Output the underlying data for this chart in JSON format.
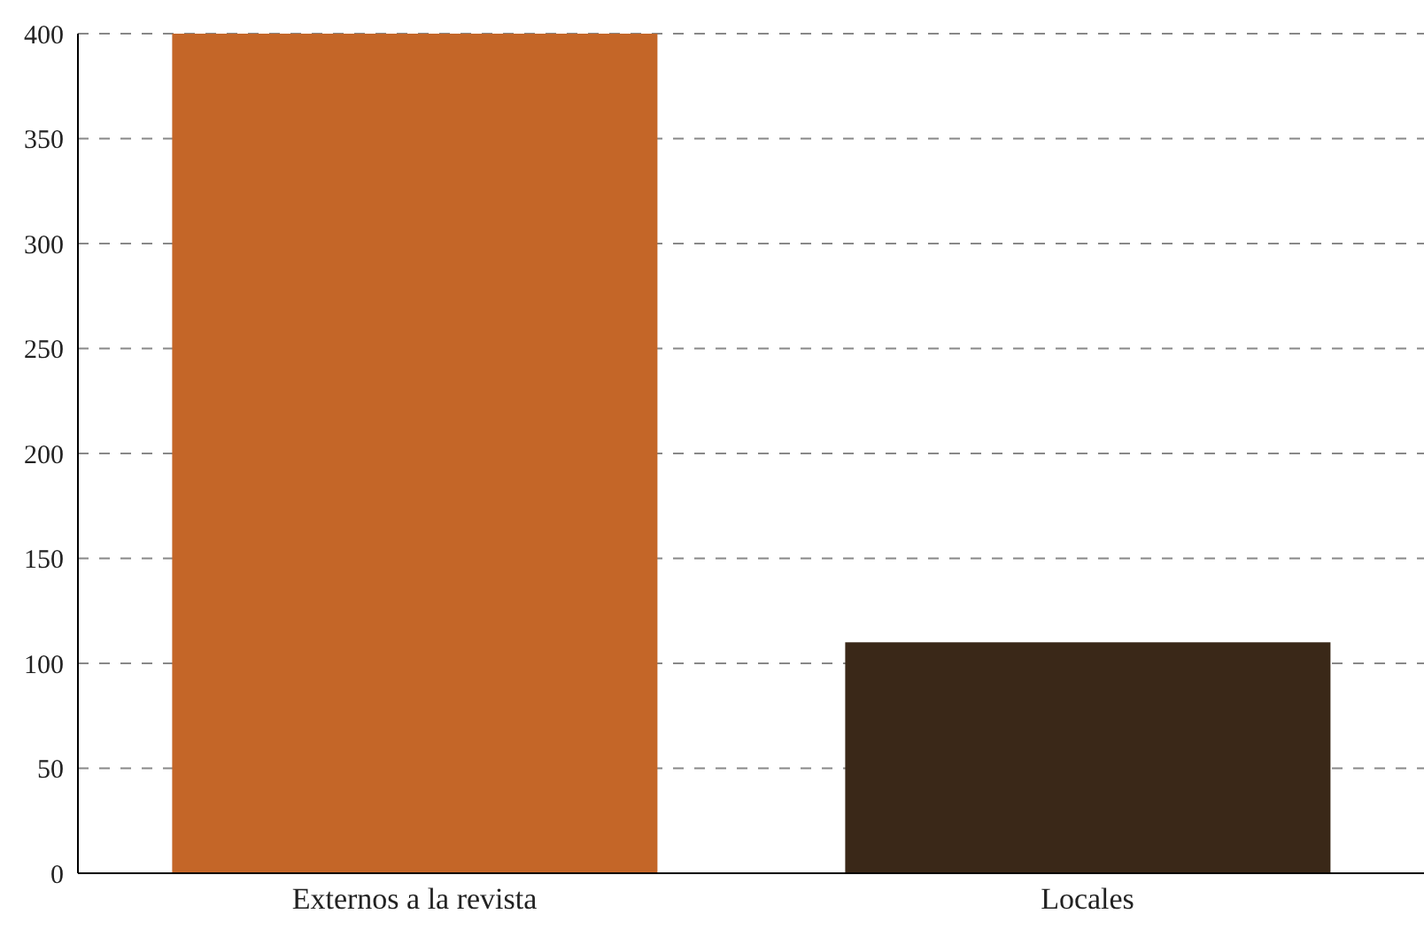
{
  "chart_data": {
    "type": "bar",
    "categories": [
      "Externos a la revista",
      "Locales"
    ],
    "values": [
      400,
      110
    ],
    "colors": [
      "#c46628",
      "#3a2818"
    ],
    "ylim": [
      0,
      400
    ],
    "yticks": [
      0,
      50,
      100,
      150,
      200,
      250,
      300,
      350,
      400
    ],
    "grid": "y"
  }
}
